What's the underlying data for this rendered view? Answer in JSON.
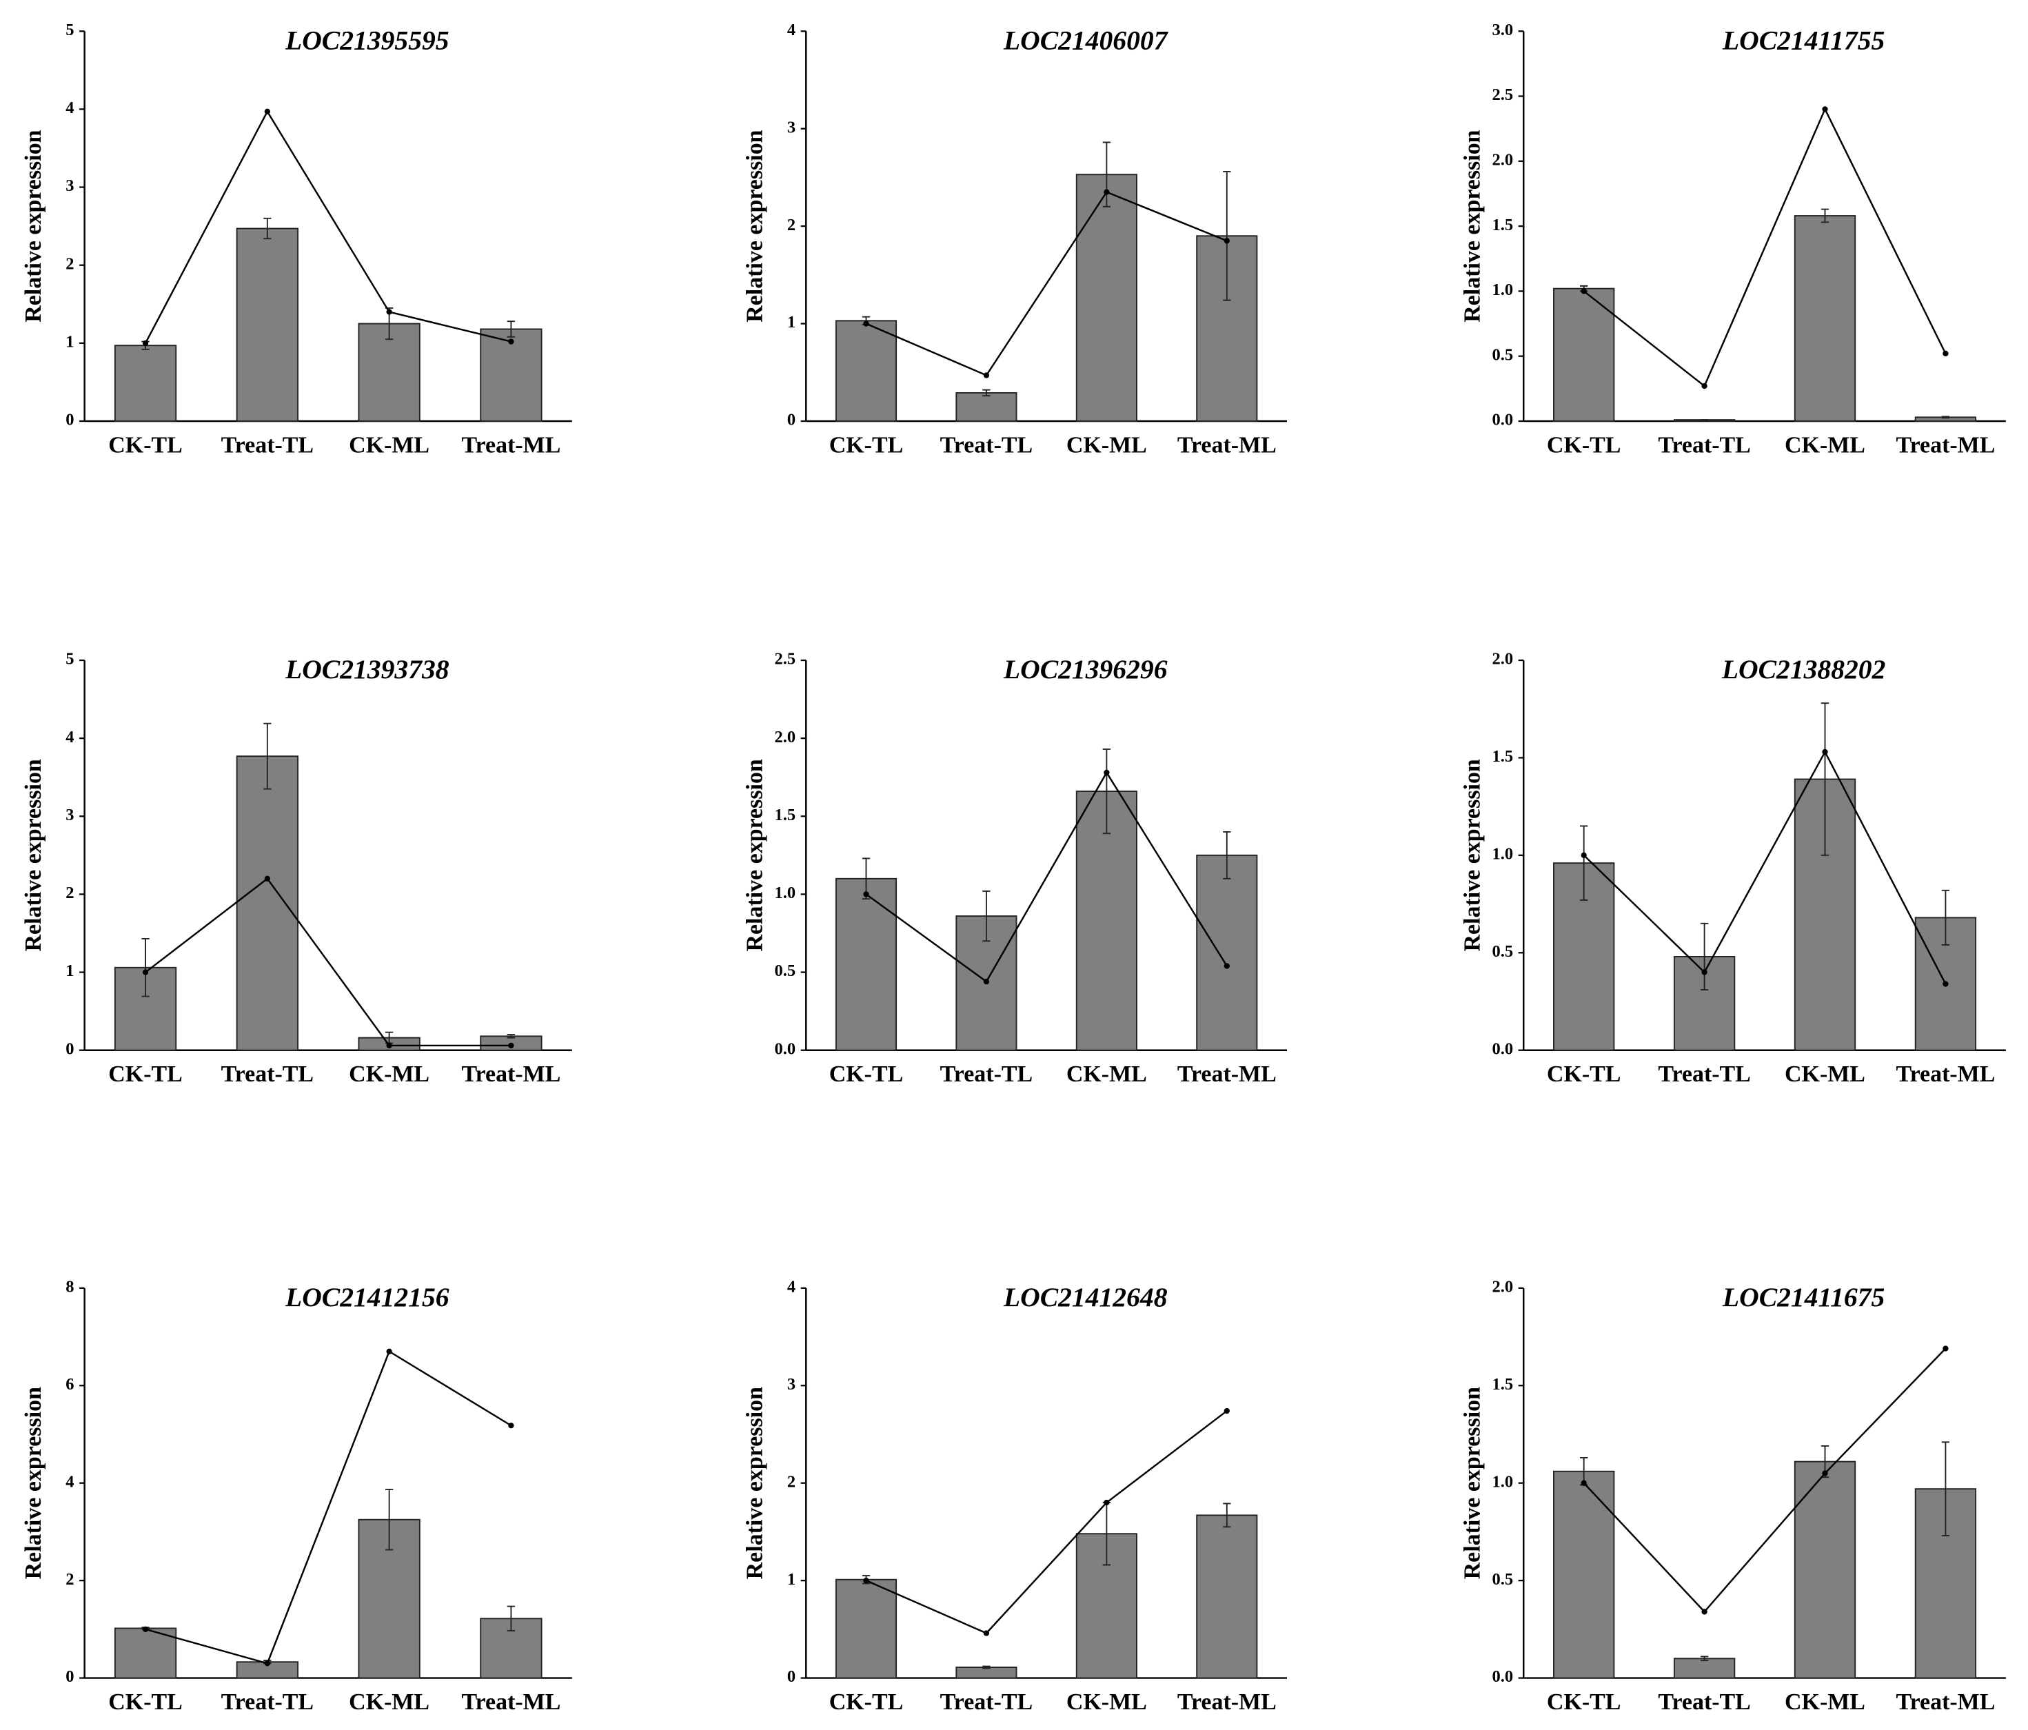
{
  "chart_data": [
    {
      "type": "bar",
      "title": "LOC21395595",
      "y_label": "Relative expression",
      "categories": [
        "CK-TL",
        "Treat-TL",
        "CK-ML",
        "Treat-ML"
      ],
      "ylim": [
        0,
        5
      ],
      "yticks": [
        0,
        1,
        2,
        3,
        4,
        5
      ],
      "series": [
        {
          "type": "bar",
          "color": "#808080",
          "values": [
            0.97,
            2.47,
            1.25,
            1.18
          ],
          "errors": [
            0.05,
            0.13,
            0.2,
            0.1
          ]
        },
        {
          "type": "line",
          "color": "#000000",
          "values": [
            1.0,
            3.97,
            1.4,
            1.02
          ]
        }
      ]
    },
    {
      "type": "bar",
      "title": "LOC21406007",
      "y_label": "Relative expression",
      "categories": [
        "CK-TL",
        "Treat-TL",
        "CK-ML",
        "Treat-ML"
      ],
      "ylim": [
        0,
        4
      ],
      "yticks": [
        0,
        1,
        2,
        3,
        4
      ],
      "series": [
        {
          "type": "bar",
          "color": "#808080",
          "values": [
            1.03,
            0.29,
            2.53,
            1.9
          ],
          "errors": [
            0.04,
            0.03,
            0.33,
            0.66
          ]
        },
        {
          "type": "line",
          "color": "#000000",
          "values": [
            1.0,
            0.47,
            2.35,
            1.85
          ]
        }
      ]
    },
    {
      "type": "bar",
      "title": "LOC21411755",
      "y_label": "Relative expression",
      "categories": [
        "CK-TL",
        "Treat-TL",
        "CK-ML",
        "Treat-ML"
      ],
      "ylim": [
        0,
        3
      ],
      "yticks": [
        {
          "value": 0,
          "label": "0.0"
        },
        0.5,
        {
          "value": 1,
          "label": "1.0"
        },
        1.5,
        {
          "value": 2,
          "label": "2.0"
        },
        2.5,
        {
          "value": 3,
          "label": "3.0"
        }
      ],
      "series": [
        {
          "type": "bar",
          "color": "#808080",
          "values": [
            1.02,
            0.01,
            1.58,
            0.03
          ],
          "errors": [
            0.02,
            0.0,
            0.05,
            0.005
          ]
        },
        {
          "type": "line",
          "color": "#000000",
          "values": [
            1.0,
            0.27,
            2.4,
            0.52
          ]
        }
      ]
    },
    {
      "type": "bar",
      "title": "LOC21393738",
      "y_label": "Relative expression",
      "categories": [
        "CK-TL",
        "Treat-TL",
        "CK-ML",
        "Treat-ML"
      ],
      "ylim": [
        0,
        5
      ],
      "yticks": [
        0,
        1,
        2,
        3,
        4,
        5
      ],
      "series": [
        {
          "type": "bar",
          "color": "#808080",
          "values": [
            1.06,
            3.77,
            0.16,
            0.18
          ],
          "errors": [
            0.37,
            0.42,
            0.07,
            0.02
          ]
        },
        {
          "type": "line",
          "color": "#000000",
          "values": [
            1.0,
            2.2,
            0.06,
            0.06
          ]
        }
      ]
    },
    {
      "type": "bar",
      "title": "LOC21396296",
      "y_label": "Relative expression",
      "categories": [
        "CK-TL",
        "Treat-TL",
        "CK-ML",
        "Treat-ML"
      ],
      "ylim": [
        0,
        2.5
      ],
      "yticks": [
        {
          "value": 0,
          "label": "0.0"
        },
        0.5,
        {
          "value": 1,
          "label": "1.0"
        },
        1.5,
        {
          "value": 2,
          "label": "2.0"
        },
        2.5
      ],
      "series": [
        {
          "type": "bar",
          "color": "#808080",
          "values": [
            1.1,
            0.86,
            1.66,
            1.25
          ],
          "errors": [
            0.13,
            0.16,
            0.27,
            0.15
          ]
        },
        {
          "type": "line",
          "color": "#000000",
          "values": [
            1.0,
            0.44,
            1.78,
            0.54
          ]
        }
      ]
    },
    {
      "type": "bar",
      "title": "LOC21388202",
      "y_label": "Relative expression",
      "categories": [
        "CK-TL",
        "Treat-TL",
        "CK-ML",
        "Treat-ML"
      ],
      "ylim": [
        0,
        2
      ],
      "yticks": [
        {
          "value": 0,
          "label": "0.0"
        },
        0.5,
        {
          "value": 1,
          "label": "1.0"
        },
        1.5,
        {
          "value": 2,
          "label": "2.0"
        }
      ],
      "series": [
        {
          "type": "bar",
          "color": "#808080",
          "values": [
            0.96,
            0.48,
            1.39,
            0.68
          ],
          "errors": [
            0.19,
            0.17,
            0.39,
            0.14
          ]
        },
        {
          "type": "line",
          "color": "#000000",
          "values": [
            1.0,
            0.4,
            1.53,
            0.34
          ]
        }
      ]
    },
    {
      "type": "bar",
      "title": "LOC21412156",
      "y_label": "Relative expression",
      "categories": [
        "CK-TL",
        "Treat-TL",
        "CK-ML",
        "Treat-ML"
      ],
      "ylim": [
        0,
        8
      ],
      "yticks": [
        0,
        2,
        4,
        6,
        8
      ],
      "series": [
        {
          "type": "bar",
          "color": "#808080",
          "values": [
            1.02,
            0.33,
            3.25,
            1.22
          ],
          "errors": [
            0.02,
            0.03,
            0.62,
            0.25
          ]
        },
        {
          "type": "line",
          "color": "#000000",
          "values": [
            1.0,
            0.3,
            6.7,
            5.18
          ]
        }
      ]
    },
    {
      "type": "bar",
      "title": "LOC21412648",
      "y_label": "Relative expression",
      "categories": [
        "CK-TL",
        "Treat-TL",
        "CK-ML",
        "Treat-ML"
      ],
      "ylim": [
        0,
        4
      ],
      "yticks": [
        0,
        1,
        2,
        3,
        4
      ],
      "series": [
        {
          "type": "bar",
          "color": "#808080",
          "values": [
            1.01,
            0.11,
            1.48,
            1.67
          ],
          "errors": [
            0.04,
            0.01,
            0.32,
            0.12
          ]
        },
        {
          "type": "line",
          "color": "#000000",
          "values": [
            1.0,
            0.46,
            1.8,
            2.74
          ]
        }
      ]
    },
    {
      "type": "bar",
      "title": "LOC21411675",
      "y_label": "Relative expression",
      "categories": [
        "CK-TL",
        "Treat-TL",
        "CK-ML",
        "Treat-ML"
      ],
      "ylim": [
        0,
        2
      ],
      "yticks": [
        {
          "value": 0,
          "label": "0.0"
        },
        0.5,
        {
          "value": 1,
          "label": "1.0"
        },
        1.5,
        {
          "value": 2,
          "label": "2.0"
        }
      ],
      "series": [
        {
          "type": "bar",
          "color": "#808080",
          "values": [
            1.06,
            0.1,
            1.11,
            0.97
          ],
          "errors": [
            0.07,
            0.01,
            0.08,
            0.24
          ]
        },
        {
          "type": "line",
          "color": "#000000",
          "values": [
            1.0,
            0.34,
            1.05,
            1.69
          ]
        }
      ]
    }
  ]
}
